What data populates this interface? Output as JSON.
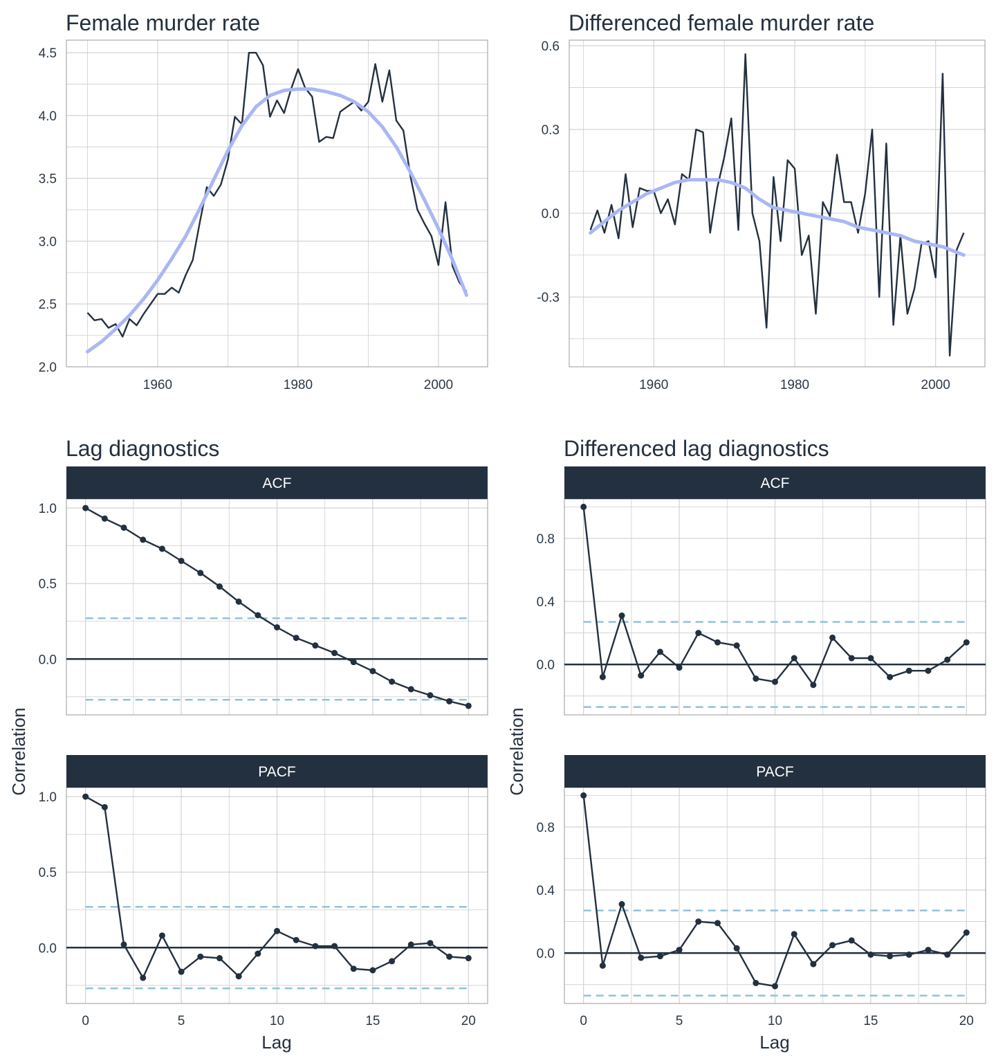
{
  "colors": {
    "series": "#23303f",
    "smooth": "#aab7f4",
    "bounds": "#8fc2d9",
    "grid": "#cfcfcf",
    "panel_border": "#9a9a9a",
    "strip": "#23303f"
  },
  "chart_data": [
    {
      "id": "level",
      "type": "line",
      "title": "Female murder rate",
      "xlabel": "",
      "ylabel": "",
      "xlim": [
        1947,
        2007
      ],
      "ylim": [
        2.0,
        4.6
      ],
      "xticks": [
        "1960",
        "1980",
        "2000"
      ],
      "yticks": [
        "2.0",
        "2.5",
        "3.0",
        "3.5",
        "4.0",
        "4.5"
      ],
      "grid": true,
      "x": [
        1950,
        1951,
        1952,
        1953,
        1954,
        1955,
        1956,
        1957,
        1958,
        1959,
        1960,
        1961,
        1962,
        1963,
        1964,
        1965,
        1966,
        1967,
        1968,
        1969,
        1970,
        1971,
        1972,
        1973,
        1974,
        1975,
        1976,
        1977,
        1978,
        1979,
        1980,
        1981,
        1982,
        1983,
        1984,
        1985,
        1986,
        1987,
        1988,
        1989,
        1990,
        1991,
        1992,
        1993,
        1994,
        1995,
        1996,
        1997,
        1998,
        1999,
        2000,
        2001,
        2002,
        2003,
        2004
      ],
      "series": [
        {
          "values": [
            2.43,
            2.37,
            2.38,
            2.31,
            2.34,
            2.24,
            2.38,
            2.33,
            2.42,
            2.5,
            2.58,
            2.58,
            2.63,
            2.59,
            2.73,
            2.85,
            3.15,
            3.43,
            3.36,
            3.45,
            3.65,
            3.99,
            3.93,
            4.5,
            4.5,
            4.4,
            3.99,
            4.12,
            4.02,
            4.21,
            4.37,
            4.22,
            4.15,
            3.79,
            3.83,
            3.82,
            4.03,
            4.07,
            4.11,
            4.04,
            4.11,
            4.41,
            4.11,
            4.36,
            3.96,
            3.88,
            3.52,
            3.25,
            3.14,
            3.04,
            2.81,
            3.31,
            2.8,
            2.67,
            2.6
          ]
        },
        {
          "name": "smooth",
          "style": "smooth",
          "x": [
            1950,
            1952,
            1954,
            1956,
            1958,
            1960,
            1962,
            1964,
            1966,
            1968,
            1970,
            1972,
            1974,
            1976,
            1978,
            1980,
            1982,
            1984,
            1986,
            1988,
            1990,
            1992,
            1994,
            1996,
            1998,
            2000,
            2002,
            2004
          ],
          "values": [
            2.12,
            2.2,
            2.3,
            2.41,
            2.54,
            2.69,
            2.86,
            3.04,
            3.26,
            3.49,
            3.72,
            3.92,
            4.07,
            4.16,
            4.2,
            4.21,
            4.21,
            4.19,
            4.16,
            4.11,
            4.03,
            3.91,
            3.75,
            3.55,
            3.33,
            3.1,
            2.85,
            2.57
          ]
        }
      ]
    },
    {
      "id": "diff",
      "type": "line",
      "title": "Differenced female murder rate",
      "xlabel": "",
      "ylabel": "",
      "xlim": [
        1948,
        2007
      ],
      "ylim": [
        -0.55,
        0.62
      ],
      "xticks": [
        "1960",
        "1980",
        "2000"
      ],
      "yticks": [
        "-0.3",
        "0.0",
        "0.3",
        "0.6"
      ],
      "grid": true,
      "x": [
        1951,
        1952,
        1953,
        1954,
        1955,
        1956,
        1957,
        1958,
        1959,
        1960,
        1961,
        1962,
        1963,
        1964,
        1965,
        1966,
        1967,
        1968,
        1969,
        1970,
        1971,
        1972,
        1973,
        1974,
        1975,
        1976,
        1977,
        1978,
        1979,
        1980,
        1981,
        1982,
        1983,
        1984,
        1985,
        1986,
        1987,
        1988,
        1989,
        1990,
        1991,
        1992,
        1993,
        1994,
        1995,
        1996,
        1997,
        1998,
        1999,
        2000,
        2001,
        2002,
        2003,
        2004
      ],
      "series": [
        {
          "values": [
            -0.06,
            0.01,
            -0.07,
            0.03,
            -0.09,
            0.14,
            -0.05,
            0.09,
            0.08,
            0.08,
            0.0,
            0.05,
            -0.04,
            0.14,
            0.12,
            0.3,
            0.29,
            -0.07,
            0.09,
            0.2,
            0.34,
            -0.06,
            0.57,
            0.0,
            -0.1,
            -0.41,
            0.13,
            -0.1,
            0.19,
            0.16,
            -0.15,
            -0.08,
            -0.36,
            0.04,
            -0.01,
            0.21,
            0.04,
            0.04,
            -0.07,
            0.07,
            0.3,
            -0.3,
            0.25,
            -0.4,
            -0.08,
            -0.36,
            -0.27,
            -0.11,
            -0.1,
            -0.23,
            0.5,
            -0.51,
            -0.13,
            -0.07
          ]
        },
        {
          "name": "smooth",
          "style": "smooth",
          "x": [
            1951,
            1953,
            1955,
            1957,
            1959,
            1961,
            1963,
            1965,
            1967,
            1969,
            1971,
            1973,
            1975,
            1977,
            1979,
            1981,
            1983,
            1985,
            1987,
            1989,
            1991,
            1993,
            1995,
            1997,
            1999,
            2001,
            2003,
            2004
          ],
          "values": [
            -0.07,
            -0.03,
            0.01,
            0.04,
            0.07,
            0.09,
            0.11,
            0.12,
            0.12,
            0.12,
            0.11,
            0.09,
            0.05,
            0.02,
            0.01,
            0.0,
            -0.01,
            -0.02,
            -0.03,
            -0.05,
            -0.06,
            -0.07,
            -0.08,
            -0.1,
            -0.11,
            -0.12,
            -0.14,
            -0.15
          ]
        }
      ]
    },
    {
      "id": "acf",
      "type": "line",
      "title": "Lag diagnostics",
      "strip": "ACF",
      "xlabel": "",
      "ylabel": "Correlation",
      "xlim": [
        -1,
        21
      ],
      "ylim": [
        -0.37,
        1.06
      ],
      "xticks": [
        "0",
        "5",
        "10",
        "15",
        "20"
      ],
      "yticks": [
        "0.0",
        "0.5",
        "1.0"
      ],
      "conf_bound": 0.27,
      "grid": true,
      "x": [
        0,
        1,
        2,
        3,
        4,
        5,
        6,
        7,
        8,
        9,
        10,
        11,
        12,
        13,
        14,
        15,
        16,
        17,
        18,
        19,
        20
      ],
      "series": [
        {
          "values": [
            1.0,
            0.93,
            0.87,
            0.79,
            0.73,
            0.65,
            0.57,
            0.48,
            0.38,
            0.29,
            0.21,
            0.14,
            0.09,
            0.04,
            -0.02,
            -0.08,
            -0.15,
            -0.2,
            -0.24,
            -0.28,
            -0.31
          ]
        }
      ]
    },
    {
      "id": "pacf",
      "type": "line",
      "strip": "PACF",
      "xlabel": "Lag",
      "ylabel": "Correlation",
      "xlim": [
        -1,
        21
      ],
      "ylim": [
        -0.37,
        1.06
      ],
      "xticks": [
        "0",
        "5",
        "10",
        "15",
        "20"
      ],
      "yticks": [
        "0.0",
        "0.5",
        "1.0"
      ],
      "conf_bound": 0.27,
      "grid": true,
      "x": [
        0,
        1,
        2,
        3,
        4,
        5,
        6,
        7,
        8,
        9,
        10,
        11,
        12,
        13,
        14,
        15,
        16,
        17,
        18,
        19,
        20
      ],
      "series": [
        {
          "values": [
            1.0,
            0.93,
            0.02,
            -0.2,
            0.08,
            -0.16,
            -0.06,
            -0.07,
            -0.19,
            -0.04,
            0.11,
            0.05,
            0.01,
            0.01,
            -0.14,
            -0.15,
            -0.09,
            0.02,
            0.03,
            -0.06,
            -0.07
          ]
        }
      ]
    },
    {
      "id": "diff_acf",
      "type": "line",
      "title": "Differenced lag diagnostics",
      "strip": "ACF",
      "xlabel": "",
      "ylabel": "Correlation",
      "xlim": [
        -1,
        21
      ],
      "ylim": [
        -0.32,
        1.05
      ],
      "xticks": [
        "0",
        "5",
        "10",
        "15",
        "20"
      ],
      "yticks": [
        "0.0",
        "0.4",
        "0.8"
      ],
      "conf_bound": 0.27,
      "grid": true,
      "x": [
        0,
        1,
        2,
        3,
        4,
        5,
        6,
        7,
        8,
        9,
        10,
        11,
        12,
        13,
        14,
        15,
        16,
        17,
        18,
        19,
        20
      ],
      "series": [
        {
          "values": [
            1.0,
            -0.08,
            0.31,
            -0.07,
            0.08,
            -0.02,
            0.2,
            0.14,
            0.12,
            -0.09,
            -0.11,
            0.04,
            -0.13,
            0.17,
            0.04,
            0.04,
            -0.08,
            -0.04,
            -0.04,
            0.03,
            0.14
          ]
        }
      ]
    },
    {
      "id": "diff_pacf",
      "type": "line",
      "strip": "PACF",
      "xlabel": "Lag",
      "ylabel": "Correlation",
      "xlim": [
        -1,
        21
      ],
      "ylim": [
        -0.32,
        1.05
      ],
      "xticks": [
        "0",
        "5",
        "10",
        "15",
        "20"
      ],
      "yticks": [
        "0.0",
        "0.4",
        "0.8"
      ],
      "conf_bound": 0.27,
      "grid": true,
      "x": [
        0,
        1,
        2,
        3,
        4,
        5,
        6,
        7,
        8,
        9,
        10,
        11,
        12,
        13,
        14,
        15,
        16,
        17,
        18,
        19,
        20
      ],
      "series": [
        {
          "values": [
            1.0,
            -0.08,
            0.31,
            -0.03,
            -0.02,
            0.02,
            0.2,
            0.19,
            0.03,
            -0.19,
            -0.21,
            0.12,
            -0.07,
            0.05,
            0.08,
            -0.01,
            -0.02,
            -0.01,
            0.02,
            -0.01,
            0.13
          ]
        }
      ]
    }
  ]
}
